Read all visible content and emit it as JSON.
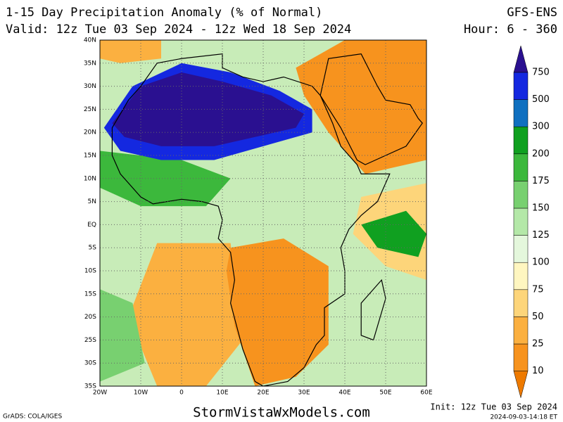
{
  "header": {
    "title": "1-15 Day Precipitation Anomaly (% of Normal)",
    "model": "GFS-ENS",
    "valid": "Valid: 12z Tue 03 Sep 2024 - 12z Wed 18 Sep 2024",
    "hours": "Hour: 6 - 360"
  },
  "map": {
    "lat_labels": [
      "40N",
      "35N",
      "30N",
      "25N",
      "20N",
      "15N",
      "10N",
      "5N",
      "EQ",
      "5S",
      "10S",
      "15S",
      "20S",
      "25S",
      "30S",
      "35S"
    ],
    "lon_labels": [
      "20W",
      "10W",
      "0",
      "10E",
      "20E",
      "30E",
      "40E",
      "50E",
      "60E"
    ]
  },
  "colorbar": {
    "levels": [
      10,
      25,
      50,
      75,
      100,
      125,
      150,
      175,
      200,
      300,
      500,
      750
    ],
    "colors": [
      "#ee7a00",
      "#f7931e",
      "#fbb040",
      "#fdd57a",
      "#fff6c0",
      "#e4f7dc",
      "#b4e8a8",
      "#78d070",
      "#3cb83c",
      "#10a020",
      "#1070c0",
      "#1428e0",
      "#2a1090"
    ]
  },
  "footer": {
    "grads": "GrADS: COLA/IGES",
    "site": "StormVistaWxModels.com",
    "init": "Init: 12z Tue 03 Sep 2024",
    "stamp": "2024-09-03-14:18 ET"
  }
}
